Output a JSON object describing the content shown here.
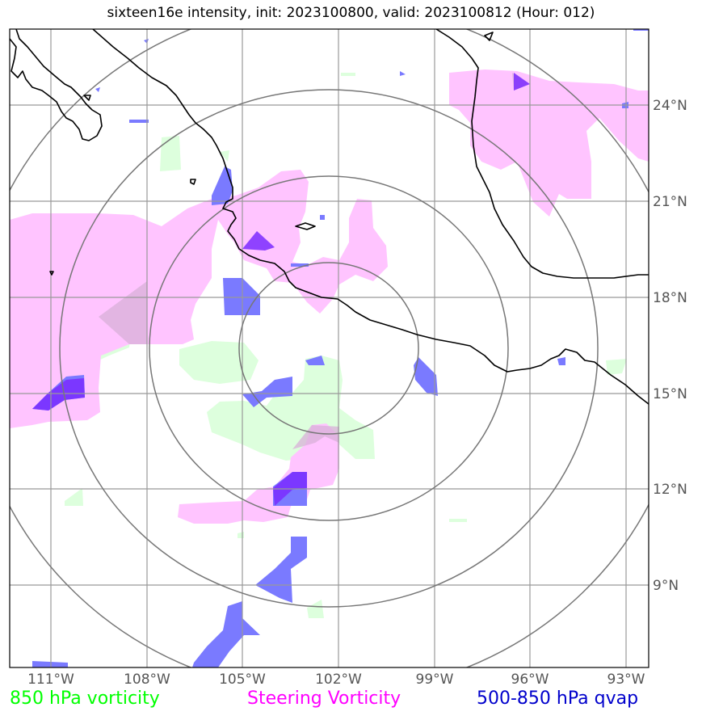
{
  "title": "sixteen16e intensity, init: 2023100800, valid: 2023100812 (Hour: 012)",
  "map": {
    "lon_ticks": [
      "111°W",
      "108°W",
      "105°W",
      "102°W",
      "99°W",
      "96°W",
      "93°W"
    ],
    "lat_ticks": [
      "24°N",
      "21°N",
      "18°N",
      "15°N",
      "12°N",
      "9°N"
    ],
    "range_rings": 4
  },
  "legend": {
    "vort850": {
      "label": "850 hPa vorticity",
      "color": "#00ff00"
    },
    "steering": {
      "label": "Steering Vorticity",
      "color": "#ff00ff"
    },
    "qvap": {
      "label": "500-850 hPa qvap",
      "color": "#0000cc"
    }
  },
  "colors": {
    "vort850_fill": "#ddffdd",
    "steering_fill": "#ffc4ff",
    "qvap_fill": "#7a7aff",
    "overlap_fill": "#7b2cff",
    "coastline": "#000000",
    "grid": "#999999",
    "rings": "#777777"
  }
}
